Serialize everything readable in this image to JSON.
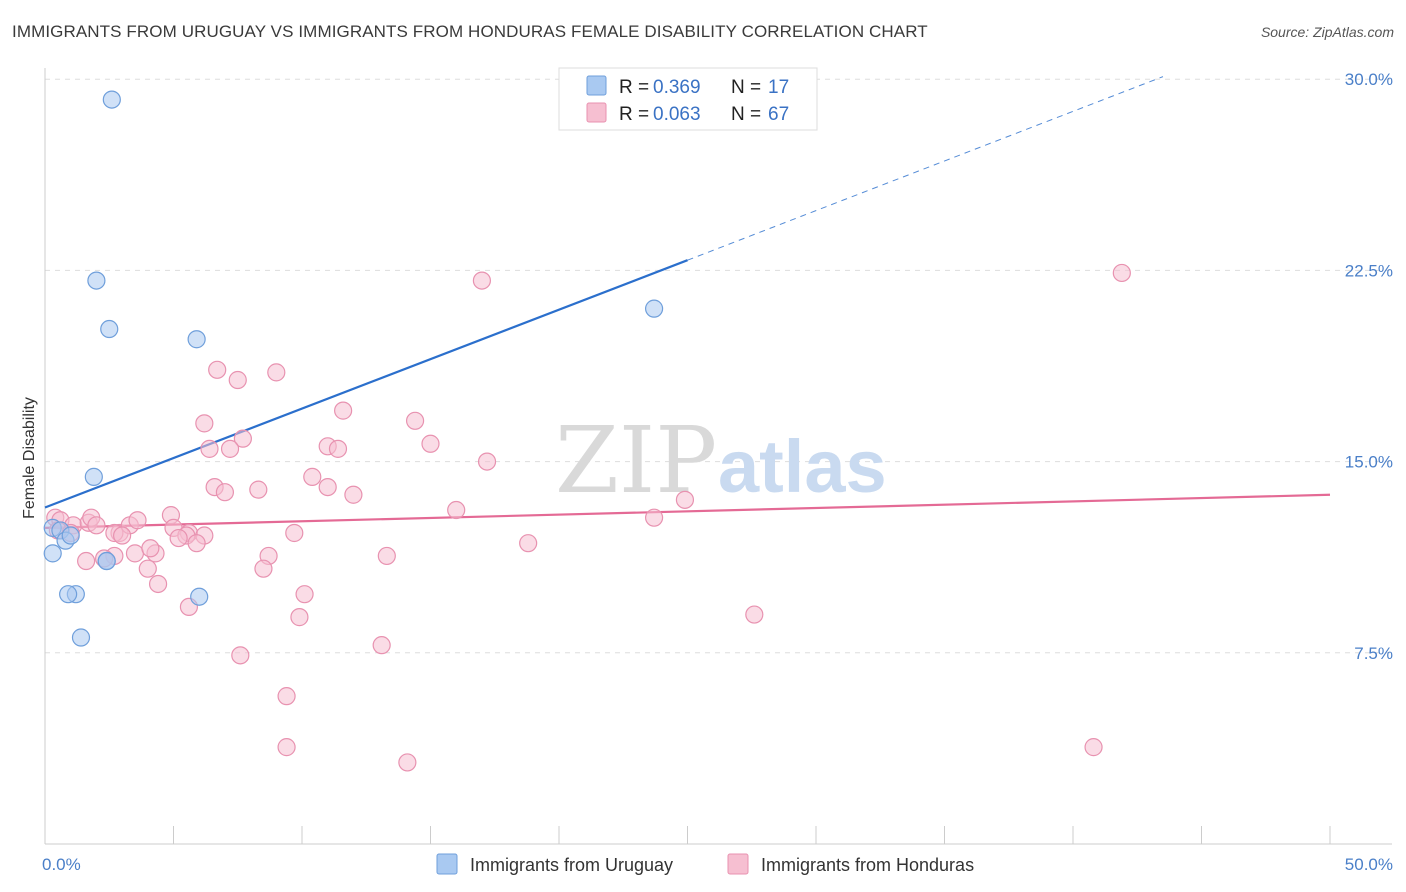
{
  "title": "IMMIGRANTS FROM URUGUAY VS IMMIGRANTS FROM HONDURAS FEMALE DISABILITY CORRELATION CHART",
  "source": "Source: ZipAtlas.com",
  "watermark": {
    "zip": "ZIP",
    "atlas": "atlas"
  },
  "colors": {
    "uruguay_fill": "#a9c9f1",
    "uruguay_stroke": "#6f9fdb",
    "uruguay_line": "#2b6fcc",
    "honduras_fill": "#f6bfd1",
    "honduras_stroke": "#e892b0",
    "honduras_line": "#e46a95",
    "tick_label": "#4a7fc8",
    "grid": "#dddddd"
  },
  "legend": {
    "rows": [
      {
        "r_label": "R = ",
        "r_value": "0.369",
        "n_label": "N = ",
        "n_value": "17"
      },
      {
        "r_label": "R = ",
        "r_value": "0.063",
        "n_label": "N = ",
        "n_value": "67"
      }
    ]
  },
  "chart_data": {
    "type": "scatter",
    "title": "IMMIGRANTS FROM URUGUAY VS IMMIGRANTS FROM HONDURAS FEMALE DISABILITY CORRELATION CHART",
    "xlabel": "",
    "ylabel": "Female Disability",
    "xlim": [
      0,
      50
    ],
    "ylim": [
      0,
      31.5
    ],
    "x_tick_labels": [
      "0.0%",
      "50.0%"
    ],
    "y_ticks": [
      7.5,
      15.0,
      22.5,
      30.0
    ],
    "y_tick_labels": [
      "7.5%",
      "15.0%",
      "22.5%",
      "30.0%"
    ],
    "grid": true,
    "legend_position": "top-center",
    "series": [
      {
        "name": "Immigrants from Uruguay",
        "trend": {
          "x": [
            0,
            25
          ],
          "y": [
            13.2,
            22.9
          ],
          "dashed_to": {
            "x": 43.5,
            "y": 30.1
          }
        },
        "points": [
          [
            2.6,
            29.2
          ],
          [
            2.0,
            22.1
          ],
          [
            2.5,
            20.2
          ],
          [
            5.9,
            19.8
          ],
          [
            23.7,
            21.0
          ],
          [
            1.9,
            14.4
          ],
          [
            0.3,
            12.4
          ],
          [
            0.6,
            12.3
          ],
          [
            0.8,
            11.9
          ],
          [
            0.3,
            11.4
          ],
          [
            2.4,
            11.1
          ],
          [
            2.4,
            11.1
          ],
          [
            1.2,
            9.8
          ],
          [
            0.9,
            9.8
          ],
          [
            1.4,
            8.1
          ],
          [
            6.0,
            9.7
          ],
          [
            1.0,
            12.1
          ]
        ]
      },
      {
        "name": "Immigrants from Honduras",
        "trend": {
          "x": [
            0,
            50
          ],
          "y": [
            12.4,
            13.7
          ]
        },
        "points": [
          [
            17.0,
            22.1
          ],
          [
            41.9,
            22.4
          ],
          [
            6.7,
            18.6
          ],
          [
            7.5,
            18.2
          ],
          [
            9.0,
            18.5
          ],
          [
            11.6,
            17.0
          ],
          [
            14.4,
            16.6
          ],
          [
            6.2,
            16.5
          ],
          [
            7.7,
            15.9
          ],
          [
            11.0,
            15.6
          ],
          [
            6.4,
            15.5
          ],
          [
            7.2,
            15.5
          ],
          [
            11.4,
            15.5
          ],
          [
            15.0,
            15.7
          ],
          [
            10.4,
            14.4
          ],
          [
            17.2,
            15.0
          ],
          [
            6.6,
            14.0
          ],
          [
            7.0,
            13.8
          ],
          [
            8.3,
            13.9
          ],
          [
            11.0,
            14.0
          ],
          [
            12.0,
            13.7
          ],
          [
            24.9,
            13.5
          ],
          [
            16.0,
            13.1
          ],
          [
            23.7,
            12.8
          ],
          [
            0.4,
            12.8
          ],
          [
            0.6,
            12.7
          ],
          [
            1.1,
            12.5
          ],
          [
            1.7,
            12.6
          ],
          [
            1.8,
            12.8
          ],
          [
            2.0,
            12.5
          ],
          [
            2.9,
            12.2
          ],
          [
            3.3,
            12.5
          ],
          [
            3.6,
            12.7
          ],
          [
            4.9,
            12.9
          ],
          [
            5.0,
            12.4
          ],
          [
            5.6,
            12.2
          ],
          [
            6.2,
            12.1
          ],
          [
            0.5,
            12.3
          ],
          [
            1.0,
            12.2
          ],
          [
            2.7,
            12.2
          ],
          [
            3.0,
            12.1
          ],
          [
            5.5,
            12.1
          ],
          [
            5.2,
            12.0
          ],
          [
            5.9,
            11.8
          ],
          [
            8.7,
            11.3
          ],
          [
            3.5,
            11.4
          ],
          [
            4.3,
            11.4
          ],
          [
            4.1,
            11.6
          ],
          [
            2.7,
            11.3
          ],
          [
            2.3,
            11.2
          ],
          [
            1.6,
            11.1
          ],
          [
            9.7,
            12.2
          ],
          [
            13.3,
            11.3
          ],
          [
            18.8,
            11.8
          ],
          [
            4.0,
            10.8
          ],
          [
            8.5,
            10.8
          ],
          [
            4.4,
            10.2
          ],
          [
            10.1,
            9.8
          ],
          [
            5.6,
            9.3
          ],
          [
            9.9,
            8.9
          ],
          [
            13.1,
            7.8
          ],
          [
            27.6,
            9.0
          ],
          [
            7.6,
            7.4
          ],
          [
            9.4,
            5.8
          ],
          [
            9.4,
            3.8
          ],
          [
            14.1,
            3.2
          ],
          [
            40.8,
            3.8
          ]
        ]
      }
    ]
  }
}
